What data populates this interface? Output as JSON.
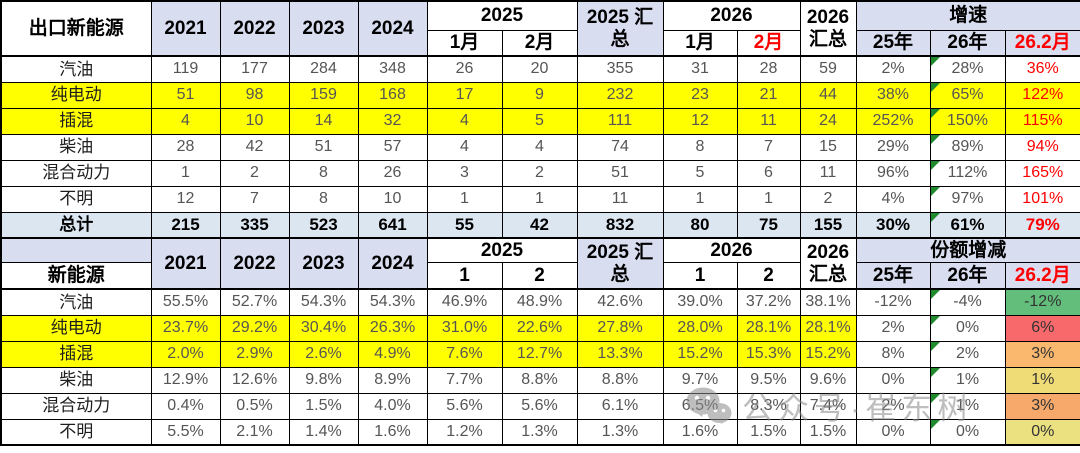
{
  "colors": {
    "header_fill": "#D9DDF0",
    "total_row_fill": "#DCE6F1",
    "highlight_fill": "#FFFF00",
    "red_text": "#FF0000",
    "flag_triangle_green": "#1F8B2C",
    "scale_low_green": "#63BE7B",
    "scale_high_red": "#F8696B"
  },
  "chart_data": [
    {
      "type": "table",
      "corner": "出口新能源",
      "years": [
        "2021",
        "2022",
        "2023",
        "2024"
      ],
      "group_2025": "2025",
      "months_2025": [
        "1月",
        "2月"
      ],
      "sum_2025": "2025 汇总",
      "group_2026": "2026",
      "months_2026": [
        "1月",
        "2月"
      ],
      "sum_2026": "2026 汇总",
      "metric_group": "增速",
      "metric_cols": [
        "25年",
        "26年",
        "26.2月"
      ],
      "rows": [
        {
          "label": "汽油",
          "highlight": false,
          "values": [
            "119",
            "177",
            "284",
            "348",
            "26",
            "20",
            "355",
            "31",
            "28",
            "59",
            "2%",
            "28%",
            "36%"
          ]
        },
        {
          "label": "纯电动",
          "highlight": true,
          "values": [
            "51",
            "98",
            "159",
            "168",
            "17",
            "9",
            "232",
            "23",
            "21",
            "44",
            "38%",
            "65%",
            "122%"
          ]
        },
        {
          "label": "插混",
          "highlight": true,
          "values": [
            "4",
            "10",
            "14",
            "32",
            "4",
            "5",
            "111",
            "12",
            "11",
            "24",
            "252%",
            "150%",
            "115%"
          ]
        },
        {
          "label": "柴油",
          "highlight": false,
          "values": [
            "28",
            "42",
            "51",
            "57",
            "4",
            "4",
            "74",
            "8",
            "7",
            "15",
            "29%",
            "89%",
            "94%"
          ]
        },
        {
          "label": "混合动力",
          "highlight": false,
          "values": [
            "1",
            "2",
            "8",
            "26",
            "3",
            "2",
            "51",
            "5",
            "6",
            "11",
            "96%",
            "112%",
            "165%"
          ]
        },
        {
          "label": "不明",
          "highlight": false,
          "values": [
            "12",
            "7",
            "8",
            "10",
            "1",
            "1",
            "11",
            "1",
            "1",
            "2",
            "4%",
            "97%",
            "101%"
          ]
        },
        {
          "label": "总计",
          "total": true,
          "values": [
            "215",
            "335",
            "523",
            "641",
            "55",
            "42",
            "832",
            "80",
            "75",
            "155",
            "30%",
            "61%",
            "79%"
          ]
        }
      ]
    },
    {
      "type": "table",
      "corner_top": "",
      "corner": "新能源",
      "years": [
        "2021",
        "2022",
        "2023",
        "2024"
      ],
      "group_2025": "2025",
      "months_2025": [
        "1",
        "2"
      ],
      "sum_2025": "2025 汇总",
      "group_2026": "2026",
      "months_2026": [
        "1",
        "2"
      ],
      "sum_2026": "2026 汇总",
      "metric_group": "份额增减",
      "metric_cols": [
        "25年",
        "26年",
        "26.2月"
      ],
      "rows": [
        {
          "label": "汽油",
          "highlight": false,
          "last_bg": "#63BE7B",
          "values": [
            "55.5%",
            "52.7%",
            "54.3%",
            "54.3%",
            "46.9%",
            "48.9%",
            "42.6%",
            "39.0%",
            "37.2%",
            "38.1%",
            "-12%",
            "-4%",
            "-12%"
          ]
        },
        {
          "label": "纯电动",
          "highlight": true,
          "last_bg": "#F8696B",
          "values": [
            "23.7%",
            "29.2%",
            "30.4%",
            "26.3%",
            "31.0%",
            "22.6%",
            "27.8%",
            "28.0%",
            "28.1%",
            "28.1%",
            "2%",
            "0%",
            "6%"
          ]
        },
        {
          "label": "插混",
          "highlight": true,
          "last_bg": "#F9B86E",
          "values": [
            "2.0%",
            "2.9%",
            "2.6%",
            "4.9%",
            "7.6%",
            "12.7%",
            "13.3%",
            "15.2%",
            "15.3%",
            "15.2%",
            "8%",
            "2%",
            "3%"
          ]
        },
        {
          "label": "柴油",
          "highlight": false,
          "last_bg": "#F0DC77",
          "values": [
            "12.9%",
            "12.6%",
            "9.8%",
            "8.9%",
            "7.7%",
            "8.8%",
            "8.8%",
            "9.7%",
            "9.5%",
            "9.6%",
            "0%",
            "1%",
            "1%"
          ]
        },
        {
          "label": "混合动力",
          "highlight": false,
          "last_bg": "#F7A96B",
          "values": [
            "0.4%",
            "0.5%",
            "1.5%",
            "4.0%",
            "5.6%",
            "5.6%",
            "6.1%",
            "6.5%",
            "8.3%",
            "7.4%",
            "2%",
            "1%",
            "3%"
          ]
        },
        {
          "label": "不明",
          "highlight": false,
          "last_bg": "#EBE180",
          "values": [
            "5.5%",
            "2.1%",
            "1.4%",
            "1.6%",
            "1.2%",
            "1.3%",
            "1.3%",
            "1.6%",
            "1.5%",
            "1.5%",
            "0%",
            "0%",
            "0%"
          ]
        }
      ]
    }
  ],
  "watermark": {
    "icon": "wechat-icon",
    "text": "公众号·崔东树"
  }
}
